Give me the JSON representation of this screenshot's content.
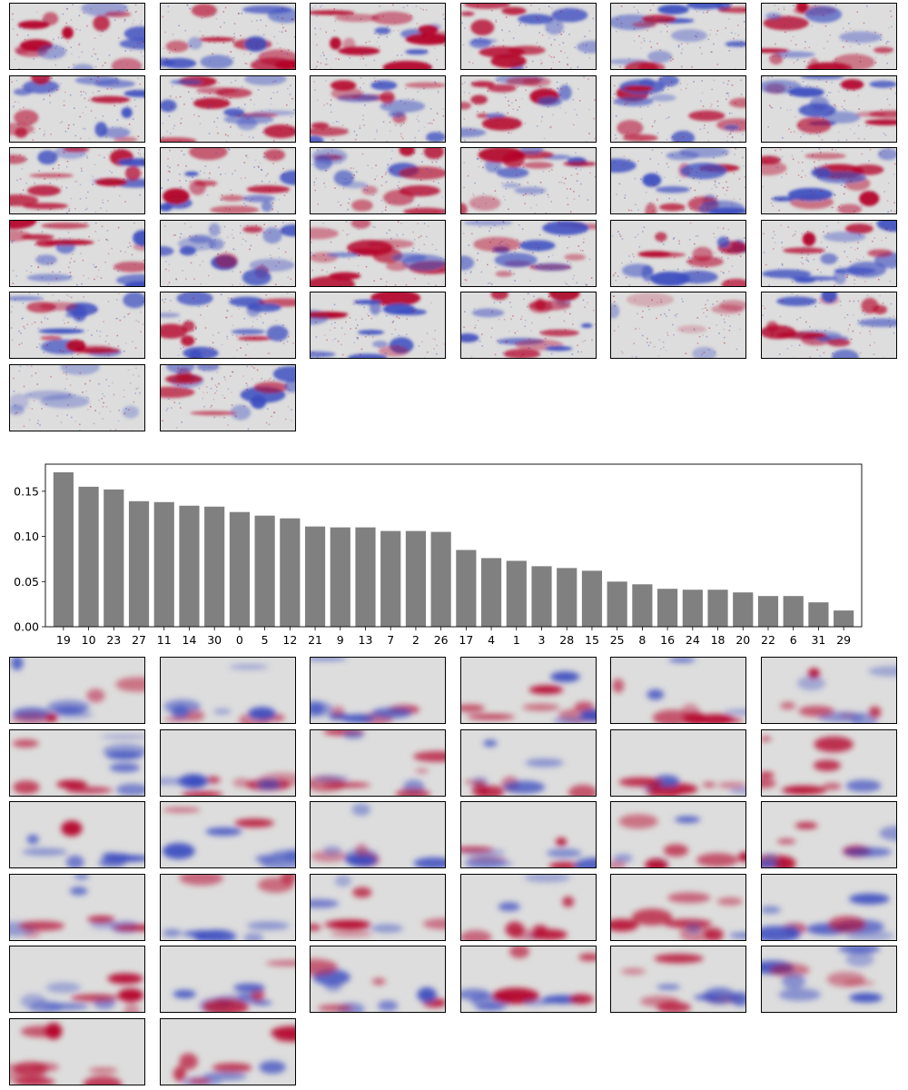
{
  "colormap": {
    "negative": "#3b4cc0",
    "neutral": "#dddddd",
    "positive": "#b40426"
  },
  "bar_color": "#808080",
  "grid": {
    "columns": 6,
    "tile_count": 32
  },
  "chart_data": {
    "type": "bar",
    "categories": [
      "19",
      "10",
      "23",
      "27",
      "11",
      "14",
      "30",
      "0",
      "5",
      "12",
      "21",
      "9",
      "13",
      "7",
      "2",
      "26",
      "17",
      "4",
      "1",
      "3",
      "28",
      "15",
      "25",
      "8",
      "16",
      "24",
      "18",
      "20",
      "22",
      "6",
      "31",
      "29"
    ],
    "values": [
      0.171,
      0.155,
      0.152,
      0.139,
      0.138,
      0.134,
      0.133,
      0.127,
      0.123,
      0.12,
      0.111,
      0.11,
      0.11,
      0.106,
      0.106,
      0.105,
      0.085,
      0.076,
      0.073,
      0.067,
      0.065,
      0.062,
      0.05,
      0.047,
      0.042,
      0.041,
      0.041,
      0.038,
      0.034,
      0.034,
      0.027,
      0.018
    ],
    "ylim": [
      0,
      0.18
    ],
    "yticks": [
      "0.00",
      "0.05",
      "0.10",
      "0.15"
    ],
    "ytick_values": [
      0,
      0.05,
      0.1,
      0.15
    ],
    "title": "",
    "xlabel": "",
    "ylabel": "",
    "grid": false
  }
}
